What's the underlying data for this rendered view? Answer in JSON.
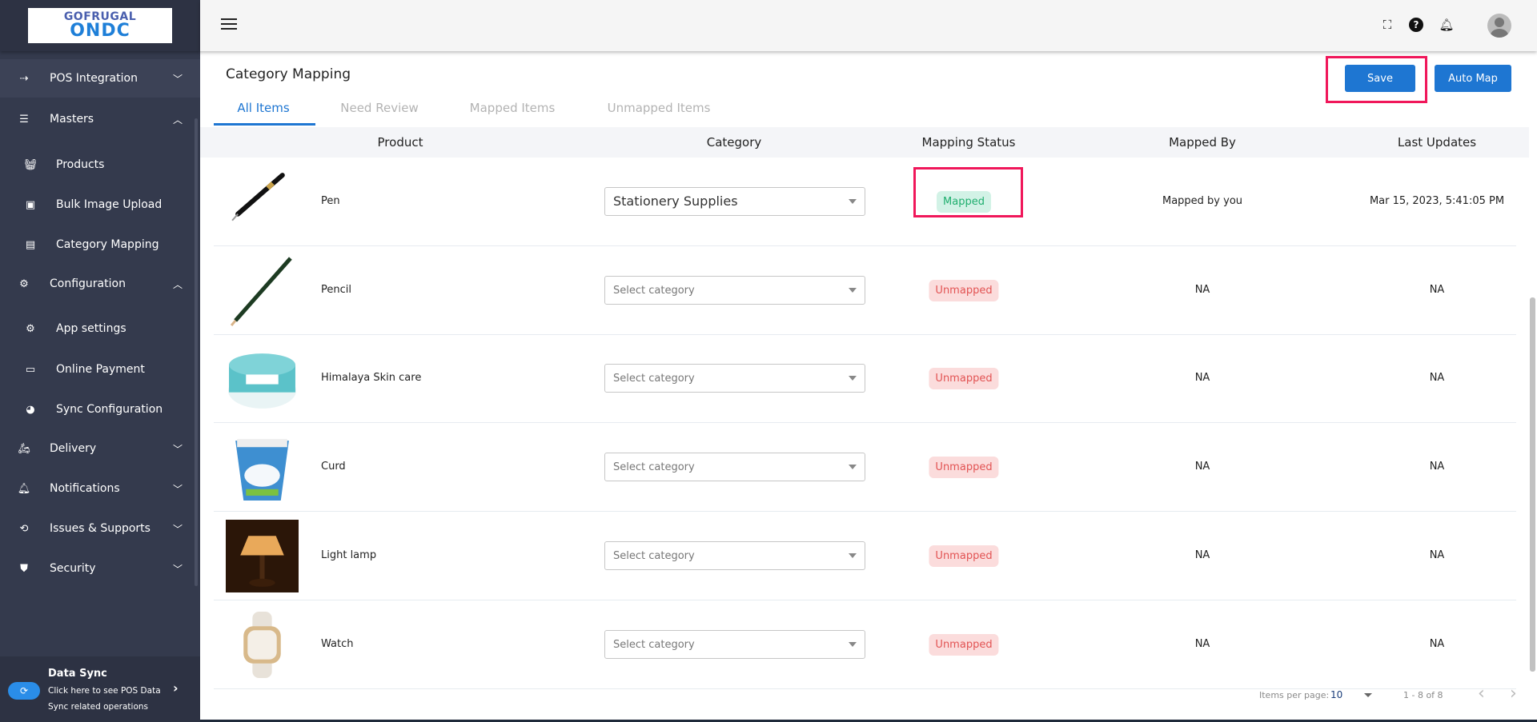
{
  "logo": {
    "line1": "GOFRUGAL",
    "line2": "ONDC"
  },
  "sidebar": {
    "items": [
      {
        "label": "POS Integration",
        "icon": "arrows-in-icon",
        "chevron": "down",
        "level": "top"
      },
      {
        "label": "Masters",
        "icon": "list-icon",
        "chevron": "up",
        "level": "top"
      },
      {
        "label": "Products",
        "icon": "basket-icon",
        "level": "sub"
      },
      {
        "label": "Bulk Image Upload",
        "icon": "images-icon",
        "level": "sub"
      },
      {
        "label": "Category Mapping",
        "icon": "table-icon",
        "level": "sub"
      },
      {
        "label": "Configuration",
        "icon": "gear-icon",
        "chevron": "up",
        "level": "top"
      },
      {
        "label": "App settings",
        "icon": "settings-box-icon",
        "level": "sub"
      },
      {
        "label": "Online Payment",
        "icon": "card-icon",
        "level": "sub"
      },
      {
        "label": "Sync Configuration",
        "icon": "pie-icon",
        "level": "sub"
      },
      {
        "label": "Delivery",
        "icon": "scooter-icon",
        "chevron": "down",
        "level": "top"
      },
      {
        "label": "Notifications",
        "icon": "bell-icon",
        "chevron": "down",
        "level": "top"
      },
      {
        "label": "Issues & Supports",
        "icon": "support-icon",
        "chevron": "down",
        "level": "top"
      },
      {
        "label": "Security",
        "icon": "shield-icon",
        "chevron": "down",
        "level": "top"
      }
    ],
    "data_sync": {
      "title": "Data Sync",
      "line1": "Click here to see POS Data",
      "line2": "Sync related operations"
    }
  },
  "page": {
    "title": "Category Mapping",
    "save_label": "Save",
    "automap_label": "Auto Map"
  },
  "tabs": [
    {
      "label": "All Items",
      "active": true
    },
    {
      "label": "Need Review"
    },
    {
      "label": "Mapped Items"
    },
    {
      "label": "Unmapped Items"
    }
  ],
  "table": {
    "headers": [
      "Product",
      "Category",
      "Mapping Status",
      "Mapped By",
      "Last Updates"
    ],
    "placeholder": "Select category",
    "rows": [
      {
        "product": "Pen",
        "category": "Stationery Supplies",
        "status": "Mapped",
        "mapped_by": "Mapped by you",
        "last_update": "Mar 15, 2023, 5:41:05 PM",
        "image": "pen"
      },
      {
        "product": "Pencil",
        "category": "",
        "status": "Unmapped",
        "mapped_by": "NA",
        "last_update": "NA",
        "image": "pencil"
      },
      {
        "product": "Himalaya Skin care",
        "category": "",
        "status": "Unmapped",
        "mapped_by": "NA",
        "last_update": "NA",
        "image": "cream"
      },
      {
        "product": "Curd",
        "category": "",
        "status": "Unmapped",
        "mapped_by": "NA",
        "last_update": "NA",
        "image": "curd"
      },
      {
        "product": "Light lamp",
        "category": "",
        "status": "Unmapped",
        "mapped_by": "NA",
        "last_update": "NA",
        "image": "lamp"
      },
      {
        "product": "Watch",
        "category": "",
        "status": "Unmapped",
        "mapped_by": "NA",
        "last_update": "NA",
        "image": "watch"
      }
    ]
  },
  "pagination": {
    "label": "Items per page:",
    "per_page": "10",
    "range": "1 - 8 of 8"
  },
  "colors": {
    "accent": "#1e76d2",
    "highlight": "#f0175a",
    "sidebar": "#343a4d",
    "mapped": "#1fae6e",
    "unmapped": "#e25353"
  }
}
